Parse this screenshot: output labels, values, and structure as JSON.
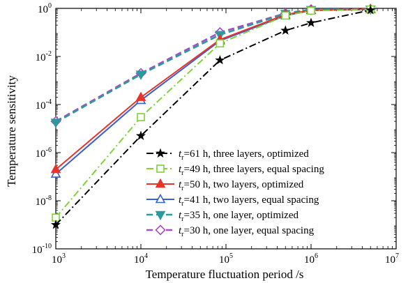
{
  "chart_data": {
    "type": "line",
    "xlabel": "Temperature fluctuation period /s",
    "ylabel": "Temperature sensitivity",
    "xscale": "log",
    "yscale": "log",
    "xlim": [
      1000,
      10000000
    ],
    "ylim": [
      1e-10,
      1
    ],
    "x_ticks": [
      {
        "value": 1000,
        "base": "10",
        "exp": "3"
      },
      {
        "value": 10000,
        "base": "10",
        "exp": "4"
      },
      {
        "value": 100000,
        "base": "10",
        "exp": "5"
      },
      {
        "value": 1000000,
        "base": "10",
        "exp": "6"
      },
      {
        "value": 10000000,
        "base": "10",
        "exp": "7"
      }
    ],
    "y_ticks": [
      {
        "value": 1e-10,
        "base": "10",
        "exp": "-10"
      },
      {
        "value": 1e-08,
        "base": "10",
        "exp": "-8"
      },
      {
        "value": 1e-06,
        "base": "10",
        "exp": "-6"
      },
      {
        "value": 0.0001,
        "base": "10",
        "exp": "-4"
      },
      {
        "value": 0.01,
        "base": "10",
        "exp": "-2"
      },
      {
        "value": 1,
        "base": "10",
        "exp": "0"
      }
    ],
    "grid": false,
    "legend_position": "bottom-right",
    "series": [
      {
        "legend_prefix": "t",
        "legend_subscript": "r",
        "name": "=61 h, three layers, optimized",
        "color": "#000000",
        "dash": "dashdot",
        "marker": "star",
        "x": [
          1000,
          10000,
          85000,
          500000,
          1000000,
          5000000
        ],
        "y": [
          1e-09,
          5e-06,
          0.007,
          0.12,
          0.25,
          0.85
        ]
      },
      {
        "legend_prefix": "t",
        "legend_subscript": "r",
        "name": "=49 h, three layers, equal spacing",
        "color": "#7fd23a",
        "dash": "dashdot",
        "marker": "square-open",
        "x": [
          1000,
          10000,
          85000,
          500000,
          1000000,
          5000000
        ],
        "y": [
          2e-09,
          3e-05,
          0.035,
          0.5,
          0.8,
          0.9
        ]
      },
      {
        "legend_prefix": "t",
        "legend_subscript": "r",
        "name": "=50 h, two layers, optimized",
        "color": "#e8332b",
        "dash": "solid",
        "marker": "triangle-up-filled",
        "x": [
          1000,
          10000,
          85000,
          500000,
          1000000,
          5000000
        ],
        "y": [
          2e-07,
          0.0002,
          0.05,
          0.55,
          0.85,
          0.92
        ]
      },
      {
        "legend_prefix": "t",
        "legend_subscript": "r",
        "name": "=41 h, two layers, equal spacing",
        "color": "#3a5fd0",
        "dash": "solid",
        "marker": "triangle-up-open",
        "x": [
          1000,
          10000,
          85000,
          500000,
          1000000,
          5000000
        ],
        "y": [
          1.3e-07,
          0.00015,
          0.045,
          0.5,
          0.82,
          0.9
        ]
      },
      {
        "legend_prefix": "t",
        "legend_subscript": "r",
        "name": "=35 h, one layer, optimized",
        "color": "#2a9a9a",
        "dash": "dashed",
        "marker": "triangle-down-filled",
        "x": [
          1000,
          10000,
          85000,
          500000,
          1000000,
          5000000
        ],
        "y": [
          1.8e-05,
          0.0018,
          0.08,
          0.6,
          0.88,
          0.92
        ]
      },
      {
        "legend_prefix": "t",
        "legend_subscript": "r",
        "name": "=30 h, one layer, equal spacing",
        "color": "#a34fc8",
        "dash": "dashed",
        "marker": "diamond-open",
        "x": [
          1000,
          10000,
          85000,
          500000,
          1000000,
          5000000
        ],
        "y": [
          2e-05,
          0.002,
          0.1,
          0.62,
          0.9,
          0.93
        ]
      }
    ]
  }
}
